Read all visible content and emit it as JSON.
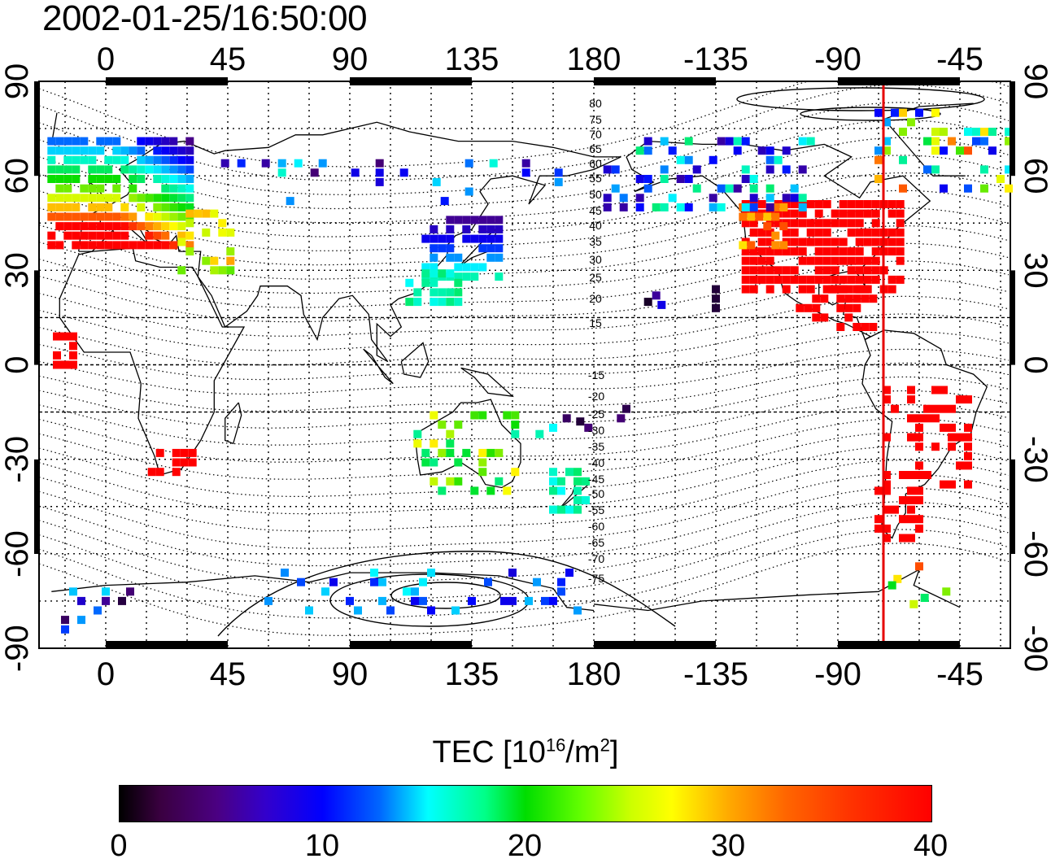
{
  "timestamp": "2002-01-25/16:50:00",
  "map": {
    "lon_ticks": [
      "0",
      "45",
      "90",
      "135",
      "180",
      "-135",
      "-90",
      "-45"
    ],
    "lat_ticks": [
      "90",
      "60",
      "30",
      "0",
      "-30",
      "-60",
      "-90"
    ],
    "contour_labels_north": [
      "80",
      "75",
      "70",
      "65",
      "60",
      "55",
      "50",
      "45",
      "40",
      "35",
      "30",
      "25",
      "20",
      "15"
    ],
    "contour_labels_south": [
      "-15",
      "-20",
      "-25",
      "-30",
      "-35",
      "-40",
      "-45",
      "-50",
      "-55",
      "-60",
      "-65",
      "-70",
      "-75"
    ],
    "terminator_color": "#e60000"
  },
  "colorbar": {
    "title_prefix": "TEC  [10",
    "title_exp1": "16",
    "title_mid": "/m",
    "title_exp2": "2",
    "title_suffix": "]",
    "ticks": [
      "0",
      "10",
      "20",
      "30",
      "40"
    ],
    "min": 0,
    "max": 40,
    "colors": [
      "#000000",
      "#4b0082",
      "#0000ff",
      "#00ffff",
      "#00dd00",
      "#ffff00",
      "#ff0000"
    ]
  }
}
